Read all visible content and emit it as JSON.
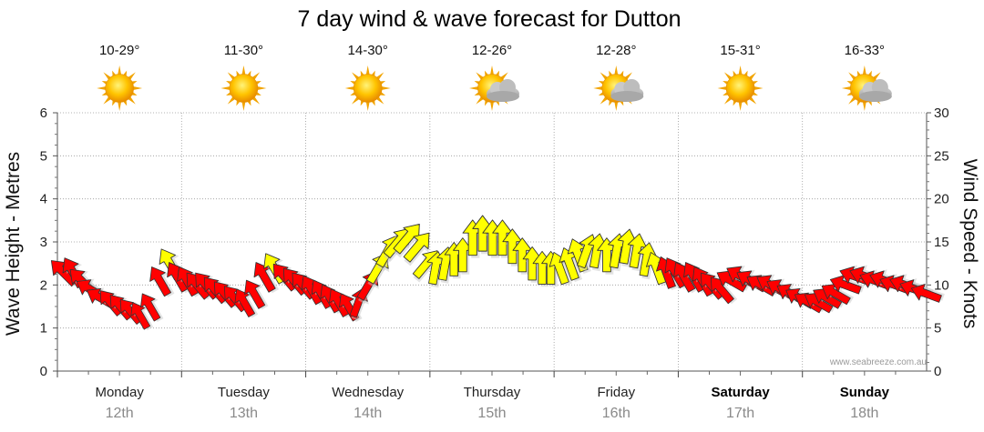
{
  "chart_data": {
    "type": "line",
    "title": "7 day wind & wave forecast for Dutton",
    "ylabel_left": "Wave Height - Metres",
    "ylabel_right": "Wind Speed - Knots",
    "ylim_left": [
      0,
      6
    ],
    "ylim_right": [
      0,
      30
    ],
    "yticks_left": [
      "0",
      "1",
      "2",
      "3",
      "4",
      "5",
      "6"
    ],
    "yticks_right": [
      "0",
      "5",
      "10",
      "15",
      "20",
      "25",
      "30"
    ],
    "grid": true,
    "watermark": "www.seabreeze.com.au",
    "days": [
      {
        "day": "Monday",
        "date": "12th",
        "temp": "10-29°",
        "weather": "sunny",
        "bold": false
      },
      {
        "day": "Tuesday",
        "date": "13th",
        "temp": "11-30°",
        "weather": "sunny",
        "bold": false
      },
      {
        "day": "Wednesday",
        "date": "14th",
        "temp": "14-30°",
        "weather": "sunny",
        "bold": false
      },
      {
        "day": "Thursday",
        "date": "15th",
        "temp": "12-26°",
        "weather": "partly-cloudy",
        "bold": false
      },
      {
        "day": "Friday",
        "date": "16th",
        "temp": "12-28°",
        "weather": "partly-cloudy",
        "bold": false
      },
      {
        "day": "Saturday",
        "date": "17th",
        "temp": "15-31°",
        "weather": "sunny",
        "bold": true
      },
      {
        "day": "Sunday",
        "date": "18th",
        "temp": "16-33°",
        "weather": "partly-cloudy",
        "bold": true
      }
    ],
    "series": [
      {
        "name": "Wind",
        "units": "knots",
        "x_day": [
          0.0,
          0.08,
          0.15,
          0.22,
          0.3,
          0.38,
          0.46,
          0.54,
          0.62,
          0.7,
          0.78,
          0.86,
          0.92,
          1.0,
          1.08,
          1.15,
          1.22,
          1.3,
          1.38,
          1.46,
          1.54,
          1.62,
          1.7,
          1.78,
          1.86,
          1.93,
          2.0,
          2.08,
          2.15,
          2.22,
          2.3,
          2.38,
          2.46,
          2.54,
          2.62,
          2.7,
          2.78,
          2.86,
          2.93,
          3.0,
          3.08,
          3.15,
          3.22,
          3.3,
          3.38,
          3.46,
          3.54,
          3.62,
          3.7,
          3.78,
          3.86,
          3.93,
          4.0,
          4.08,
          4.15,
          4.22,
          4.3,
          4.38,
          4.46,
          4.54,
          4.62,
          4.7,
          4.78,
          4.86,
          4.93,
          5.0,
          5.08,
          5.15,
          5.22,
          5.3,
          5.38,
          5.46,
          5.54,
          5.62,
          5.7,
          5.78,
          5.86,
          5.93,
          6.0,
          6.08,
          6.15,
          6.22,
          6.3,
          6.38,
          6.46,
          6.54,
          6.62,
          6.7,
          6.78,
          6.86,
          6.95
        ],
        "speed": [
          11.5,
          11.5,
          10.5,
          9.5,
          8.5,
          8,
          7.5,
          7,
          6.5,
          7.5,
          10.5,
          12.5,
          11,
          10.5,
          10,
          10,
          9.5,
          9,
          8.5,
          8,
          9,
          11,
          12,
          11,
          10.5,
          10,
          9.5,
          9,
          8.5,
          8,
          7.5,
          8,
          10,
          12,
          14,
          15,
          15.5,
          14.5,
          12.5,
          12,
          12.5,
          13,
          13.5,
          15.5,
          16,
          15.5,
          15.5,
          14.5,
          13.5,
          12.5,
          12,
          12,
          12,
          12.5,
          13.5,
          14,
          14,
          13.5,
          14,
          14.5,
          14,
          13,
          12,
          11.5,
          11.5,
          11,
          11,
          10.5,
          10,
          9.5,
          10.5,
          11,
          10.5,
          10,
          10,
          9.5,
          9,
          8.5,
          8,
          8,
          8.5,
          9,
          10,
          11,
          11,
          10.5,
          10.5,
          10,
          10,
          9.5,
          9
        ],
        "direction_deg": [
          315,
          330,
          315,
          300,
          300,
          320,
          320,
          320,
          330,
          330,
          330,
          330,
          330,
          330,
          320,
          320,
          320,
          320,
          320,
          330,
          330,
          330,
          330,
          320,
          320,
          320,
          330,
          330,
          330,
          330,
          330,
          20,
          30,
          30,
          30,
          40,
          40,
          40,
          40,
          10,
          10,
          0,
          0,
          0,
          0,
          0,
          0,
          0,
          0,
          0,
          0,
          0,
          340,
          340,
          340,
          20,
          10,
          0,
          10,
          10,
          10,
          10,
          340,
          340,
          330,
          330,
          330,
          330,
          320,
          320,
          300,
          300,
          300,
          300,
          300,
          300,
          300,
          300,
          300,
          300,
          300,
          300,
          290,
          290,
          290,
          290,
          290,
          290,
          290,
          290,
          290
        ],
        "color_rule": "red below 12 knots, yellow at or above 12 knots"
      }
    ]
  }
}
